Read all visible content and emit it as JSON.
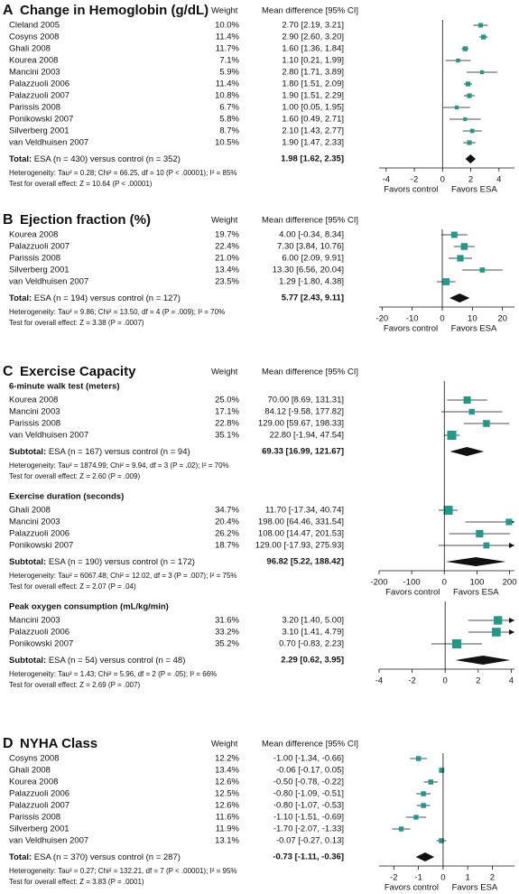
{
  "chart_data": [
    {
      "type": "forest",
      "letter": "A",
      "title": "Change in Hemoglobin (g/dL)",
      "weight_header": "Weight",
      "effect_header": "Mean difference [95% CI]",
      "marker_color": "#1f9a89",
      "sections": [
        {
          "xlim": [
            -4.5,
            5.1
          ],
          "xticks": [
            -4,
            -2,
            0,
            2,
            4
          ],
          "favors_left": "Favors control",
          "favors_right": "Favors ESA",
          "groups": [
            {
              "studies": [
                {
                  "name": "Cleland 2005",
                  "weight": 10.0,
                  "weight_label": "10.0%",
                  "md": 2.7,
                  "lo": 2.19,
                  "hi": 3.21,
                  "ci_label": "2.70 [2.19, 3.21]"
                },
                {
                  "name": "Cosyns 2008",
                  "weight": 11.4,
                  "weight_label": "11.4%",
                  "md": 2.9,
                  "lo": 2.6,
                  "hi": 3.2,
                  "ci_label": "2.90 [2.60, 3.20]"
                },
                {
                  "name": "Ghali 2008",
                  "weight": 11.7,
                  "weight_label": "11.7%",
                  "md": 1.6,
                  "lo": 1.36,
                  "hi": 1.84,
                  "ci_label": "1.60 [1.36, 1.84]"
                },
                {
                  "name": "Kourea 2008",
                  "weight": 7.1,
                  "weight_label": "7.1%",
                  "md": 1.1,
                  "lo": 0.21,
                  "hi": 1.99,
                  "ci_label": "1.10 [0.21, 1.99]"
                },
                {
                  "name": "Mancini 2003",
                  "weight": 5.9,
                  "weight_label": "5.9%",
                  "md": 2.8,
                  "lo": 1.71,
                  "hi": 3.89,
                  "ci_label": "2.80 [1.71, 3.89]"
                },
                {
                  "name": "Palazzuoli 2006",
                  "weight": 11.4,
                  "weight_label": "11.4%",
                  "md": 1.8,
                  "lo": 1.51,
                  "hi": 2.09,
                  "ci_label": "1.80 [1.51, 2.09]"
                },
                {
                  "name": "Palazzuoli 2007",
                  "weight": 10.8,
                  "weight_label": "10.8%",
                  "md": 1.9,
                  "lo": 1.51,
                  "hi": 2.29,
                  "ci_label": "1.90 [1.51, 2.29]"
                },
                {
                  "name": "Parissis 2008",
                  "weight": 6.7,
                  "weight_label": "6.7%",
                  "md": 1.0,
                  "lo": 0.05,
                  "hi": 1.95,
                  "ci_label": "1.00 [0.05, 1.95]"
                },
                {
                  "name": "Ponikowski 2007",
                  "weight": 5.8,
                  "weight_label": "5.8%",
                  "md": 1.6,
                  "lo": 0.49,
                  "hi": 2.71,
                  "ci_label": "1.60 [0.49, 2.71]"
                },
                {
                  "name": "Silverberg 2001",
                  "weight": 8.7,
                  "weight_label": "8.7%",
                  "md": 2.1,
                  "lo": 1.43,
                  "hi": 2.77,
                  "ci_label": "2.10 [1.43, 2.77]"
                },
                {
                  "name": "van Veldhuisen 2007",
                  "weight": 10.5,
                  "weight_label": "10.5%",
                  "md": 1.9,
                  "lo": 1.47,
                  "hi": 2.33,
                  "ci_label": "1.90 [1.47, 2.33]"
                }
              ],
              "total": {
                "label": "Total:",
                "text": "ESA (n = 430) versus control (n = 352)",
                "md": 1.98,
                "lo": 1.62,
                "hi": 2.35,
                "ci_label": "1.98 [1.62, 2.35]"
              },
              "heterogeneity": "Heterogeneity: Tau² = 0.28; Chi² = 66.25, df = 10 (P < .00001); I² = 85%",
              "overall": "Test for overall effect: Z = 10.64 (P < .00001)"
            }
          ]
        }
      ]
    },
    {
      "type": "forest",
      "letter": "B",
      "title": "Ejection fraction (%)",
      "weight_header": "Weight",
      "effect_header": "Mean difference [95% CI]",
      "marker_color": "#1f9a89",
      "sections": [
        {
          "xlim": [
            -21,
            24
          ],
          "xticks": [
            -20,
            -10,
            0,
            10,
            20
          ],
          "favors_left": "Favors control",
          "favors_right": "Favors ESA",
          "groups": [
            {
              "studies": [
                {
                  "name": "Kourea 2008",
                  "weight": 19.7,
                  "weight_label": "19.7%",
                  "md": 4.0,
                  "lo": -0.34,
                  "hi": 8.34,
                  "ci_label": "4.00 [-0.34, 8.34]"
                },
                {
                  "name": "Palazzuoli 2007",
                  "weight": 22.4,
                  "weight_label": "22.4%",
                  "md": 7.3,
                  "lo": 3.84,
                  "hi": 10.76,
                  "ci_label": "7.30 [3.84, 10.76]"
                },
                {
                  "name": "Parissis 2008",
                  "weight": 21.0,
                  "weight_label": "21.0%",
                  "md": 6.0,
                  "lo": 2.09,
                  "hi": 9.91,
                  "ci_label": "6.00 [2.09, 9.91]"
                },
                {
                  "name": "Silverberg 2001",
                  "weight": 13.4,
                  "weight_label": "13.4%",
                  "md": 13.3,
                  "lo": 6.56,
                  "hi": 20.04,
                  "ci_label": "13.30 [6.56, 20.04]"
                },
                {
                  "name": "van Veldhuisen 2007",
                  "weight": 23.5,
                  "weight_label": "23.5%",
                  "md": 1.29,
                  "lo": -1.8,
                  "hi": 4.38,
                  "ci_label": "1.29 [-1.80, 4.38]"
                }
              ],
              "total": {
                "label": "Total:",
                "text": "ESA (n = 194) versus control (n = 127)",
                "md": 5.77,
                "lo": 2.43,
                "hi": 9.11,
                "ci_label": "5.77 [2.43, 9.11]"
              },
              "heterogeneity": "Heterogeneity: Tau² = 9.86; Chi² = 13.50, df = 4 (P = .009); I² = 70%",
              "overall": "Test for overall effect: Z = 3.38 (P = .0007)"
            }
          ]
        }
      ]
    },
    {
      "type": "forest",
      "letter": "C",
      "title": "Exercise Capacity",
      "weight_header": "Weight",
      "effect_header": "Mean difference [95% CI]",
      "marker_color": "#1f9a89",
      "sections": [
        {
          "xlim": [
            -200,
            215
          ],
          "xticks": [
            -200,
            -100,
            0,
            100,
            200
          ],
          "favors_left": "Favors control",
          "favors_right": "Favors ESA",
          "groups": [
            {
              "subtitle": "6-minute walk test (meters)",
              "studies": [
                {
                  "name": "Kourea 2008",
                  "weight": 25.0,
                  "weight_label": "25.0%",
                  "md": 70.0,
                  "lo": 8.69,
                  "hi": 131.31,
                  "ci_label": "70.00 [8.69, 131.31]"
                },
                {
                  "name": "Mancini 2003",
                  "weight": 17.1,
                  "weight_label": "17.1%",
                  "md": 84.12,
                  "lo": -9.58,
                  "hi": 177.82,
                  "ci_label": "84.12 [-9.58, 177.82]"
                },
                {
                  "name": "Parissis 2008",
                  "weight": 22.8,
                  "weight_label": "22.8%",
                  "md": 129.0,
                  "lo": 59.67,
                  "hi": 198.33,
                  "ci_label": "129.00 [59.67, 198.33]"
                },
                {
                  "name": "van Veldhuisen 2007",
                  "weight": 35.1,
                  "weight_label": "35.1%",
                  "md": 22.8,
                  "lo": -1.94,
                  "hi": 47.54,
                  "ci_label": "22.80 [-1.94, 47.54]"
                }
              ],
              "total": {
                "label": "Subtotal:",
                "text": "ESA (n = 167) versus control (n = 94)",
                "md": 69.33,
                "lo": 16.99,
                "hi": 121.67,
                "ci_label": "69.33 [16.99, 121.67]"
              },
              "heterogeneity": "Heterogeneity: Tau² = 1874.99; Chi² = 9.94, df = 3 (P = .02); I² = 70%",
              "overall": "Test for overall effect: Z = 2.60 (P = .009)"
            },
            {
              "subtitle": "Exercise duration (seconds)",
              "studies": [
                {
                  "name": "Ghali 2008",
                  "weight": 34.7,
                  "weight_label": "34.7%",
                  "md": 11.7,
                  "lo": -17.34,
                  "hi": 40.74,
                  "ci_label": "11.70 [-17.34, 40.74]"
                },
                {
                  "name": "Mancini 2003",
                  "weight": 20.4,
                  "weight_label": "20.4%",
                  "md": 198.0,
                  "lo": 64.46,
                  "hi": 331.54,
                  "ci_label": "198.00 [64.46, 331.54]"
                },
                {
                  "name": "Palazzuoli 2006",
                  "weight": 26.2,
                  "weight_label": "26.2%",
                  "md": 108.0,
                  "lo": 14.47,
                  "hi": 201.53,
                  "ci_label": "108.00 [14.47, 201.53]"
                },
                {
                  "name": "Ponikowski 2007",
                  "weight": 18.7,
                  "weight_label": "18.7%",
                  "md": 129.0,
                  "lo": -17.93,
                  "hi": 275.93,
                  "ci_label": "129.00 [-17.93, 275.93]"
                }
              ],
              "total": {
                "label": "Subtotal:",
                "text": "ESA (n = 190) versus control (n = 172)",
                "md": 96.82,
                "lo": 5.22,
                "hi": 188.42,
                "ci_label": "96.82 [5.22, 188.42]"
              },
              "heterogeneity": "Heterogeneity: Tau² = 6067.48; Chi² = 12.02, df = 3 (P = .007); I² = 75%",
              "overall": "Test for overall effect: Z = 2.07 (P = .04)"
            }
          ]
        },
        {
          "xlim": [
            -4,
            4.2
          ],
          "xticks": [
            -4,
            -2,
            0,
            2,
            4
          ],
          "groups": [
            {
              "subtitle": "Peak oxygen consumption (mL/kg/min)",
              "studies": [
                {
                  "name": "Mancini 2003",
                  "weight": 31.6,
                  "weight_label": "31.6%",
                  "md": 3.2,
                  "lo": 1.4,
                  "hi": 5.0,
                  "ci_label": "3.20 [1.40, 5.00]"
                },
                {
                  "name": "Palazzuoli 2006",
                  "weight": 33.2,
                  "weight_label": "33.2%",
                  "md": 3.1,
                  "lo": 1.41,
                  "hi": 4.79,
                  "ci_label": "3.10 [1.41, 4.79]"
                },
                {
                  "name": "Ponikowski 2007",
                  "weight": 35.2,
                  "weight_label": "35.2%",
                  "md": 0.7,
                  "lo": -0.83,
                  "hi": 2.23,
                  "ci_label": "0.70 [-0.83, 2.23]"
                }
              ],
              "total": {
                "label": "Subtotal:",
                "text": "ESA (n = 54) versus control (n = 48)",
                "md": 2.29,
                "lo": 0.62,
                "hi": 3.95,
                "ci_label": "2.29 [0.62, 3.95]"
              },
              "heterogeneity": "Heterogeneity: Tau² = 1.43; Chi² = 5.96, df = 2 (P = .05); I² = 66%",
              "overall": "Test for overall effect: Z = 2.69 (P = .007)"
            }
          ]
        }
      ]
    },
    {
      "type": "forest",
      "letter": "D",
      "title": "NYHA Class",
      "weight_header": "Weight",
      "effect_header": "Mean difference [95% CI]",
      "marker_color": "#1f9a89",
      "sections": [
        {
          "xlim": [
            -2.6,
            2.9
          ],
          "xticks": [
            -2,
            -1,
            0,
            1,
            2
          ],
          "favors_left": "Favors control",
          "favors_right": "Favors ESA",
          "groups": [
            {
              "studies": [
                {
                  "name": "Cosyns 2008",
                  "weight": 12.2,
                  "weight_label": "12.2%",
                  "md": -1.0,
                  "lo": -1.34,
                  "hi": -0.66,
                  "ci_label": "-1.00 [-1.34, -0.66]"
                },
                {
                  "name": "Ghali 2008",
                  "weight": 13.4,
                  "weight_label": "13.4%",
                  "md": -0.06,
                  "lo": -0.17,
                  "hi": 0.05,
                  "ci_label": "-0.06 [-0.17, 0.05]"
                },
                {
                  "name": "Kourea 2008",
                  "weight": 12.6,
                  "weight_label": "12.6%",
                  "md": -0.5,
                  "lo": -0.78,
                  "hi": -0.22,
                  "ci_label": "-0.50 [-0.78, -0.22]"
                },
                {
                  "name": "Palazzuoli 2006",
                  "weight": 12.5,
                  "weight_label": "12.5%",
                  "md": -0.8,
                  "lo": -1.09,
                  "hi": -0.51,
                  "ci_label": "-0.80 [-1.09, -0.51]"
                },
                {
                  "name": "Palazzuoli 2007",
                  "weight": 12.6,
                  "weight_label": "12.6%",
                  "md": -0.8,
                  "lo": -1.07,
                  "hi": -0.53,
                  "ci_label": "-0.80 [-1.07, -0.53]"
                },
                {
                  "name": "Parissis 2008",
                  "weight": 11.6,
                  "weight_label": "11.6%",
                  "md": -1.1,
                  "lo": -1.51,
                  "hi": -0.69,
                  "ci_label": "-1.10 [-1.51, -0.69]"
                },
                {
                  "name": "Silverberg 2001",
                  "weight": 11.9,
                  "weight_label": "11.9%",
                  "md": -1.7,
                  "lo": -2.07,
                  "hi": -1.33,
                  "ci_label": "-1.70 [-2.07, -1.33]"
                },
                {
                  "name": "van Veldhuisen 2007",
                  "weight": 13.1,
                  "weight_label": "13.1%",
                  "md": -0.07,
                  "lo": -0.27,
                  "hi": 0.13,
                  "ci_label": "-0.07 [-0.27, 0.13]"
                }
              ],
              "total": {
                "label": "Total:",
                "text": "ESA (n = 370) versus control (n = 287)",
                "md": -0.73,
                "lo": -1.11,
                "hi": -0.36,
                "ci_label": "-0.73 [-1.11, -0.36]"
              },
              "heterogeneity": "Heterogeneity: Tau² = 0.27; Chi² = 132.21, df = 7 (P < .00001); I² = 95%",
              "overall": "Test for overall effect: Z = 3.83 (P = .0001)"
            }
          ]
        }
      ]
    }
  ]
}
